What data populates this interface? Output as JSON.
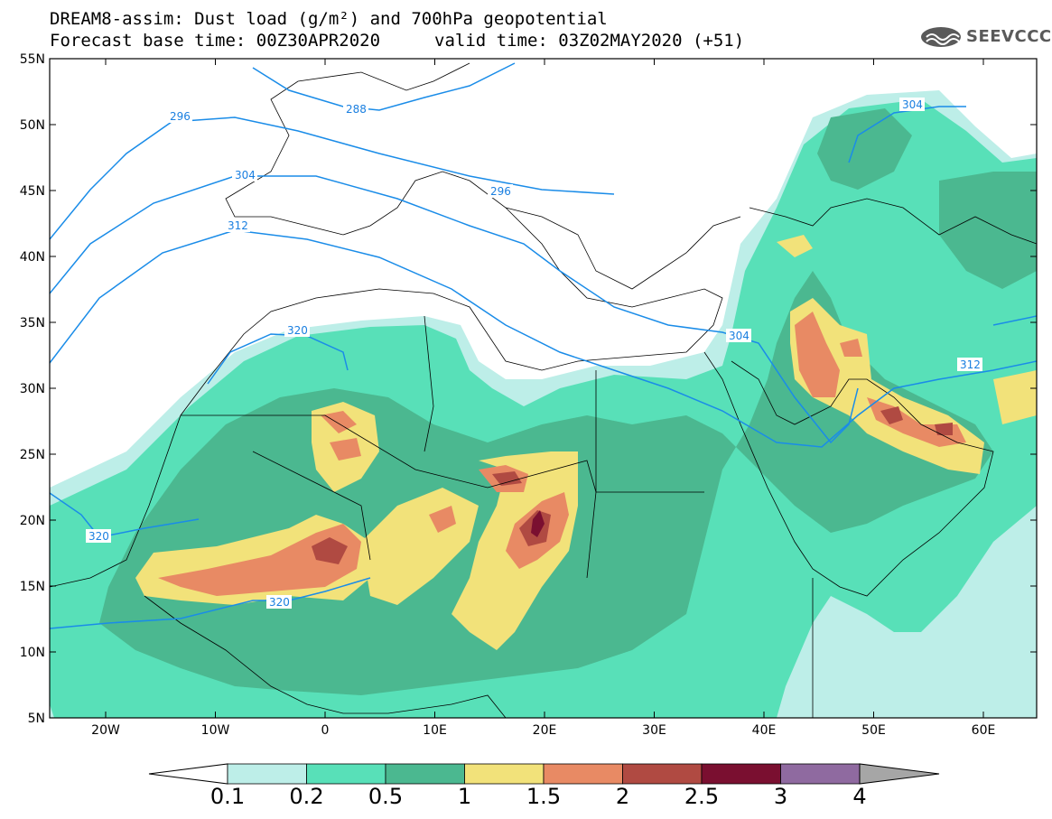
{
  "title": {
    "line1": "DREAM8-assim: Dust load (g/m²) and 700hPa geopotential",
    "line2_base": "Forecast base time: 00Z30APR2020",
    "line2_valid": "valid time: 03Z02MAY2020 (+51)"
  },
  "logo": {
    "text": "SEEVCCC",
    "icon": "cloud-logo-icon"
  },
  "axes": {
    "lat_labels": [
      "55N",
      "50N",
      "45N",
      "40N",
      "35N",
      "30N",
      "25N",
      "20N",
      "15N",
      "10N",
      "5N"
    ],
    "lon_labels": [
      "20W",
      "10W",
      "0",
      "10E",
      "20E",
      "30E",
      "40E",
      "50E",
      "60E"
    ]
  },
  "contours": {
    "color": "#1a8ce8",
    "labels": [
      "296",
      "288",
      "304",
      "296",
      "312",
      "320",
      "320",
      "320",
      "304",
      "312",
      "304"
    ]
  },
  "colorbar": {
    "ticks": [
      "0.1",
      "0.2",
      "0.5",
      "1",
      "1.5",
      "2",
      "2.5",
      "3",
      "4"
    ],
    "colors": [
      "#bdeee8",
      "#58e0b8",
      "#4bb890",
      "#f2e27a",
      "#e88a64",
      "#b04a42",
      "#7a0f30",
      "#8f6aa0"
    ],
    "under_color": "#ffffff",
    "over_color": "#a6a6a6"
  },
  "dust_colors": {
    "c1": "#bdeee8",
    "c2": "#58e0b8",
    "c3": "#4bb890",
    "c4": "#f2e27a",
    "c5": "#e88a64",
    "c6": "#b04a42",
    "c7": "#7a0f30"
  }
}
